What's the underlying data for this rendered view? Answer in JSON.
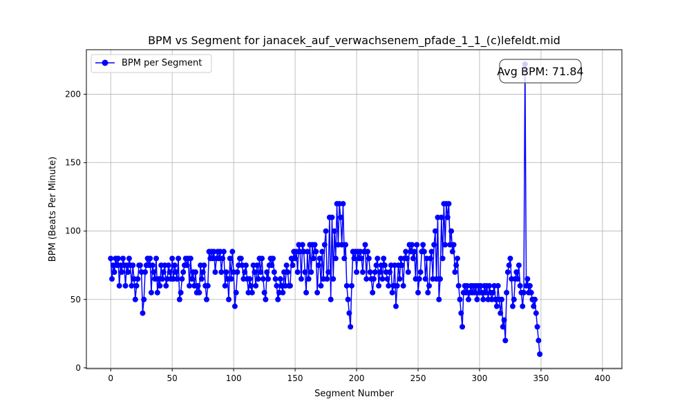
{
  "chart_data": {
    "type": "line",
    "title": "BPM vs Segment for janacek_auf_verwachsenem_pfade_1_1_(c)lefeldt.mid",
    "xlabel": "Segment Number",
    "ylabel": "BPM (Beats Per Minute)",
    "xlim": [
      -19.8,
      415.8
    ],
    "ylim": [
      -0.6,
      232.6
    ],
    "xticks": [
      0,
      50,
      100,
      150,
      200,
      250,
      300,
      350,
      400
    ],
    "yticks": [
      0,
      50,
      100,
      150,
      200
    ],
    "grid": true,
    "legend": {
      "position": "top-left",
      "entries": [
        "BPM per Segment"
      ]
    },
    "annotation": "Avg BPM: 71.84",
    "series": [
      {
        "name": "BPM per Segment",
        "color": "#0000ff",
        "marker": "circle",
        "x_start": 0,
        "x_step": 1,
        "values": [
          80,
          65,
          75,
          70,
          80,
          75,
          80,
          60,
          75,
          70,
          80,
          75,
          60,
          75,
          70,
          80,
          75,
          60,
          75,
          65,
          50,
          60,
          65,
          75,
          75,
          70,
          40,
          50,
          70,
          75,
          80,
          75,
          80,
          55,
          75,
          70,
          65,
          80,
          55,
          65,
          60,
          75,
          65,
          70,
          75,
          60,
          65,
          75,
          70,
          65,
          80,
          65,
          75,
          70,
          65,
          80,
          50,
          55,
          65,
          70,
          75,
          80,
          75,
          80,
          60,
          80,
          65,
          70,
          60,
          70,
          55,
          60,
          55,
          75,
          65,
          70,
          75,
          60,
          50,
          60,
          85,
          80,
          85,
          80,
          85,
          70,
          80,
          85,
          80,
          85,
          70,
          80,
          85,
          60,
          70,
          65,
          50,
          80,
          65,
          85,
          70,
          45,
          55,
          70,
          75,
          80,
          80,
          75,
          65,
          70,
          75,
          65,
          55,
          65,
          60,
          55,
          75,
          70,
          60,
          75,
          65,
          80,
          70,
          80,
          65,
          55,
          50,
          70,
          65,
          75,
          80,
          75,
          80,
          70,
          65,
          60,
          50,
          55,
          65,
          60,
          55,
          70,
          60,
          75,
          70,
          60,
          60,
          80,
          75,
          85,
          80,
          85,
          70,
          90,
          85,
          65,
          90,
          85,
          70,
          55,
          85,
          65,
          90,
          70,
          90,
          80,
          90,
          85,
          55,
          75,
          80,
          60,
          85,
          65,
          90,
          100,
          65,
          70,
          110,
          50,
          110,
          65,
          100,
          80,
          120,
          90,
          120,
          110,
          90,
          120,
          80,
          90,
          60,
          50,
          40,
          30,
          60,
          85,
          80,
          85,
          70,
          85,
          80,
          85,
          80,
          70,
          85,
          90,
          65,
          85,
          80,
          70,
          65,
          55,
          65,
          70,
          75,
          80,
          60,
          70,
          75,
          65,
          80,
          75,
          70,
          65,
          60,
          70,
          75,
          55,
          60,
          75,
          45,
          60,
          75,
          65,
          80,
          75,
          60,
          80,
          85,
          80,
          70,
          90,
          85,
          90,
          80,
          85,
          65,
          90,
          55,
          65,
          70,
          85,
          90,
          85,
          65,
          80,
          55,
          60,
          80,
          85,
          65,
          90,
          100,
          65,
          110,
          50,
          65,
          110,
          80,
          120,
          90,
          120,
          110,
          120,
          90,
          100,
          85,
          90,
          70,
          75,
          80,
          60,
          50,
          40,
          30,
          55,
          60,
          55,
          60,
          50,
          55,
          60,
          55,
          60,
          55,
          60,
          50,
          60,
          55,
          60,
          55,
          50,
          60,
          55,
          60,
          50,
          60,
          55,
          50,
          55,
          60,
          50,
          45,
          60,
          50,
          40,
          50,
          30,
          35,
          20,
          55,
          70,
          75,
          80,
          65,
          45,
          50,
          65,
          70,
          65,
          75,
          60,
          55,
          45,
          55,
          222,
          60,
          65,
          55,
          60,
          55,
          50,
          45,
          50,
          40,
          30,
          20,
          10
        ]
      }
    ]
  }
}
